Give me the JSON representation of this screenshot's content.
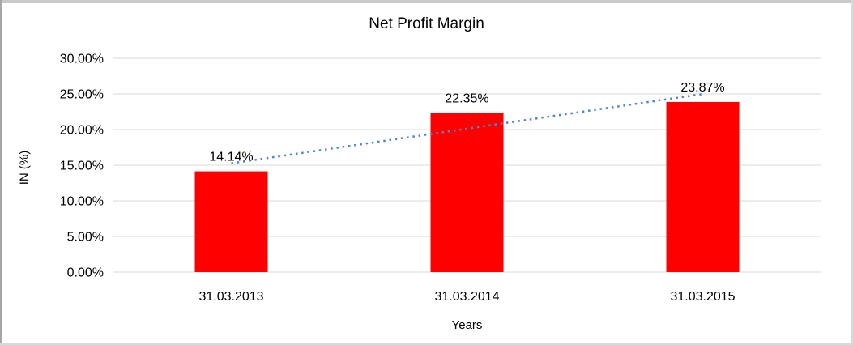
{
  "chart_data": {
    "type": "bar",
    "title": "Net Profit Margin",
    "xlabel": "Years",
    "ylabel": "IN (%)",
    "categories": [
      "31.03.2013",
      "31.03.2014",
      "31.03.2015"
    ],
    "values": [
      14.14,
      22.35,
      23.87
    ],
    "data_labels": [
      "14.14%",
      "22.35%",
      "23.87%"
    ],
    "y_ticks": [
      "0.00%",
      "5.00%",
      "10.00%",
      "15.00%",
      "20.00%",
      "25.00%",
      "30.00%"
    ],
    "y_tick_step": 5,
    "ylim": [
      0,
      30
    ],
    "grid": true,
    "legend": "none",
    "bar_color": "#FF0000",
    "gridline_color": "#D9D9D9",
    "trendline": {
      "type": "linear",
      "style": "dotted",
      "color": "#4E86C8",
      "start_value": 15.26,
      "end_value": 24.99
    }
  }
}
